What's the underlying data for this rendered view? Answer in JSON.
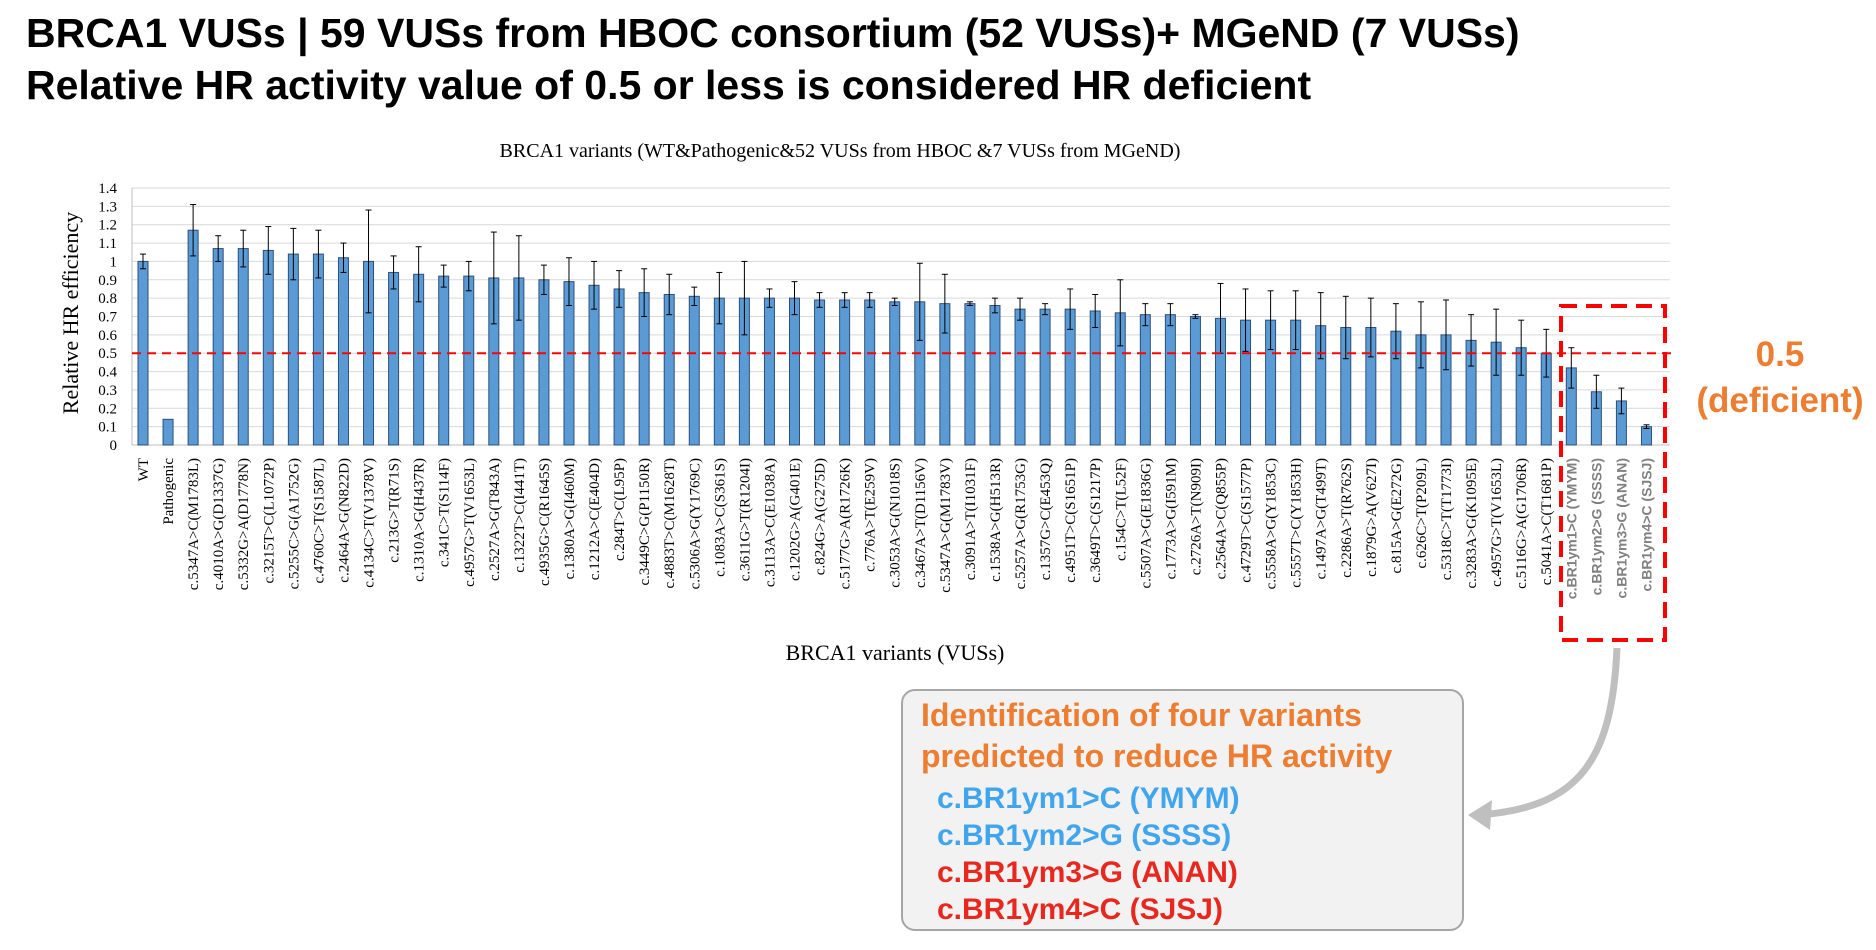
{
  "slide": {
    "title_line1": "BRCA1 VUSs | 59 VUSs from HBOC consortium (52 VUSs)+ MGeND (7 VUSs)",
    "title_line2": "Relative HR activity value of 0.5 or less is considered HR deficient"
  },
  "chart_data": {
    "type": "bar",
    "title": "BRCA1 variants (WT&Pathogenic&52 VUSs from HBOC &7 VUSs from MGeND)",
    "xlabel": "BRCA1 variants (VUSs)",
    "ylabel": "Relative HR efficiency",
    "ylim": [
      0,
      1.4
    ],
    "yticks": [
      "0",
      "0.1",
      "0.2",
      "0.3",
      "0.4",
      "0.5",
      "0.6",
      "0.7",
      "0.8",
      "0.9",
      "1",
      "1.1",
      "1.2",
      "1.3",
      "1.4"
    ],
    "grid": true,
    "threshold": 0.5,
    "bar_color": "#5b9bd5",
    "threshold_color": "#ff0000",
    "categories": [
      "WT",
      "Pathogenic",
      "c.5347A>C(M1783L)",
      "c.4010A>G(D1337G)",
      "c.5332G>A(D1778N)",
      "c.3215T>C(L1072P)",
      "c.5255C>G(A1752G)",
      "c.4760C>T(S1587L)",
      "c.2464A>G(N822D)",
      "c.4134C>T(V1378V)",
      "c.213G>T(R71S)",
      "c.1310A>G(H437R)",
      "c.341C>T(S114F)",
      "c.4957G>T(V1653L)",
      "c.2527A>G(T843A)",
      "c.1322T>C(I441T)",
      "c.4935G>C(R1645S)",
      "c.1380A>G(I460M)",
      "c.1212A>C(E404D)",
      "c.284T>C(L95P)",
      "c.3449C>G(P1150R)",
      "c.4883T>C(M1628T)",
      "c.5306A>G(Y1769C)",
      "c.1083A>C(S361S)",
      "c.3611G>T(R1204I)",
      "c.3113A>C(E1038A)",
      "c.1202G>A(G401E)",
      "c.824G>A(G275D)",
      "c.5177G>A(R1726K)",
      "c.776A>T(E259V)",
      "c.3053A>G(N1018S)",
      "c.3467A>T(D1156V)",
      "c.5347A>G(M1783V)",
      "c.3091A>T(I1031F)",
      "c.1538A>G(H513R)",
      "c.5257A>G(R1753G)",
      "c.1357G>C(E453Q)",
      "c.4951T>C(S1651P)",
      "c.3649T>C(S1217P)",
      "c.154C>T(L52F)",
      "c.5507A>G(E1836G)",
      "c.1773A>G(I591M)",
      "c.2726A>T(N909I)",
      "c.2564A>C(Q855P)",
      "c.4729T>C(S1577P)",
      "c.5558A>G(Y1853C)",
      "c.5557T>C(Y1853H)",
      "c.1497A>G(T499T)",
      "c.2286A>T(R762S)",
      "c.1879G>A(V627I)",
      "c.815A>G(E272G)",
      "c.626C>T(P209L)",
      "c.5318C>T(T1773I)",
      "c.3283A>G(K1095E)",
      "c.4957G>T(V1653L)",
      "c.5116G>A(G1706R)",
      "c.5041A>C(T1681P)",
      "c.BR1ym1>C (YMYM)",
      "c.BR1ym2>G (SSSS)",
      "c.BR1ym3>G (ANAN)",
      "c.BR1ym4>C (SJSJ)"
    ],
    "values": [
      1.0,
      0.14,
      1.17,
      1.07,
      1.07,
      1.06,
      1.04,
      1.04,
      1.02,
      1.0,
      0.94,
      0.93,
      0.92,
      0.92,
      0.91,
      0.91,
      0.9,
      0.89,
      0.87,
      0.85,
      0.83,
      0.82,
      0.81,
      0.8,
      0.8,
      0.8,
      0.8,
      0.79,
      0.79,
      0.79,
      0.78,
      0.78,
      0.77,
      0.77,
      0.76,
      0.74,
      0.74,
      0.74,
      0.73,
      0.72,
      0.71,
      0.71,
      0.7,
      0.69,
      0.68,
      0.68,
      0.68,
      0.65,
      0.64,
      0.64,
      0.62,
      0.6,
      0.6,
      0.57,
      0.56,
      0.53,
      0.5,
      0.42,
      0.29,
      0.24,
      0.1
    ],
    "errors": [
      0.04,
      0.0,
      0.14,
      0.07,
      0.1,
      0.13,
      0.14,
      0.13,
      0.08,
      0.28,
      0.09,
      0.15,
      0.06,
      0.08,
      0.25,
      0.23,
      0.08,
      0.13,
      0.13,
      0.1,
      0.13,
      0.11,
      0.05,
      0.14,
      0.2,
      0.05,
      0.09,
      0.04,
      0.04,
      0.04,
      0.02,
      0.21,
      0.16,
      0.01,
      0.04,
      0.06,
      0.03,
      0.11,
      0.09,
      0.18,
      0.06,
      0.06,
      0.01,
      0.19,
      0.17,
      0.16,
      0.16,
      0.18,
      0.17,
      0.16,
      0.15,
      0.18,
      0.19,
      0.14,
      0.18,
      0.15,
      0.13,
      0.11,
      0.09,
      0.07,
      0.01
    ]
  },
  "threshold_label": {
    "line1": "0.5",
    "line2": "(deficient)"
  },
  "callout": {
    "heading_line1": "Identification of four variants",
    "heading_line2": "predicted to reduce HR activity",
    "items": [
      {
        "text": "c.BR1ym1>C (YMYM)",
        "color": "#41a5ee"
      },
      {
        "text": "c.BR1ym2>G (SSSS)",
        "color": "#41a5ee"
      },
      {
        "text": "c.BR1ym3>G (ANAN)",
        "color": "#e8281f"
      },
      {
        "text": "c.BR1ym4>C (SJSJ)",
        "color": "#e8281f"
      }
    ],
    "accent_color": "#ed7d31"
  }
}
